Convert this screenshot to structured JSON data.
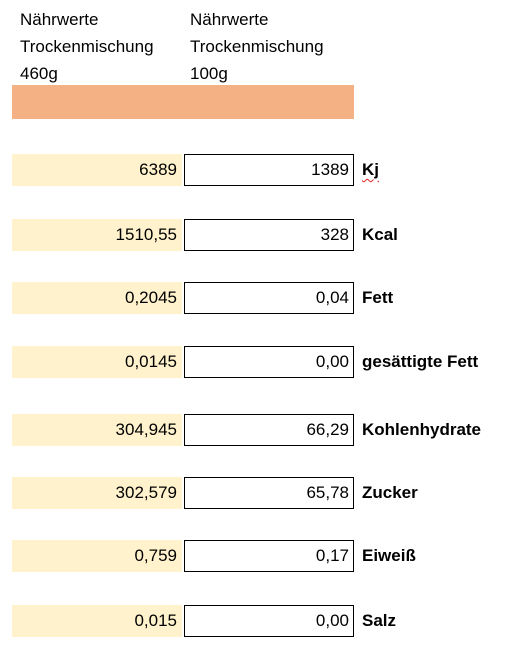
{
  "header": [
    [
      "Nährwerte",
      "Trockenmischung",
      "460g"
    ],
    [
      "Nährwerte",
      "Trockenmischung",
      "100g"
    ]
  ],
  "table": {
    "rows": [
      [
        "6389",
        "1389",
        "Kj"
      ],
      [
        "1510,55",
        "328",
        "Kcal"
      ],
      [
        "0,2045",
        "0,04",
        "Fett"
      ],
      [
        "0,0145",
        "0,00",
        "gesättigte Fett"
      ],
      [
        "304,945",
        "66,29",
        "Kohlenhydrate"
      ],
      [
        "302,579",
        "65,78",
        "Zucker"
      ],
      [
        "0,759",
        "0,17",
        "Eiweiß"
      ],
      [
        "0,015",
        "0,00",
        "Salz"
      ]
    ]
  }
}
